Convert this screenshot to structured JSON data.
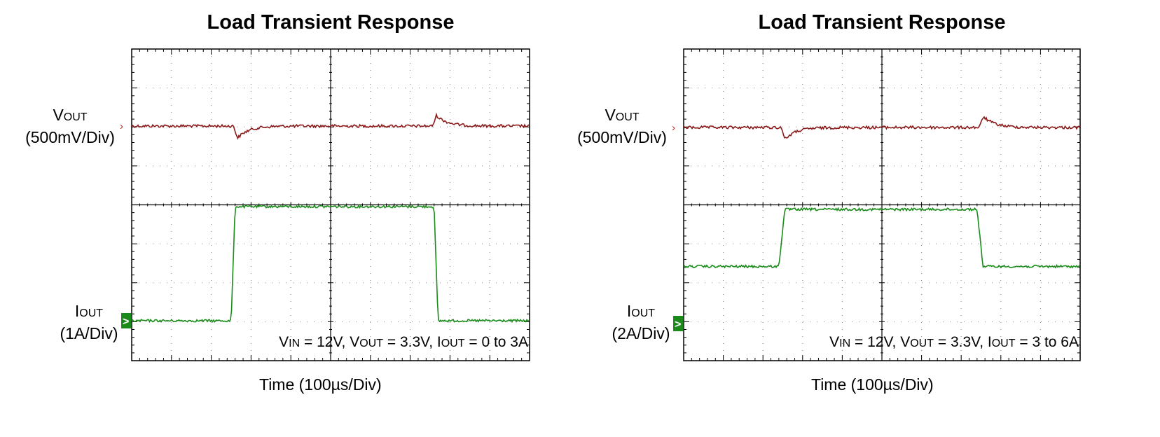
{
  "chart_data": [
    {
      "type": "line",
      "title": "Load Transient Response",
      "xlabel": "Time (100µs/Div)",
      "x_divisions": 10,
      "y_divisions": 8,
      "grid": true,
      "channels": [
        {
          "name_main": "V",
          "name_sub": "OUT",
          "scale": "(500mV/Div)",
          "color": "#8b1a1a"
        },
        {
          "name_main": "I",
          "name_sub": "OUT",
          "scale": "(1A/Div)",
          "color": "#1a8c1a"
        }
      ],
      "conditions": [
        {
          "main": "V",
          "sub": "IN",
          "text": " = 12V, "
        },
        {
          "main": "V",
          "sub": "OUT",
          "text": " = 3.3V, "
        },
        {
          "main": "I",
          "sub": "OUT",
          "text": " = 0 to 3A"
        }
      ],
      "iout_points": [
        [
          0,
          0
        ],
        [
          2.5,
          0
        ],
        [
          2.6,
          3
        ],
        [
          7.6,
          3
        ],
        [
          7.7,
          0
        ],
        [
          10,
          0
        ]
      ],
      "vout_events": [
        {
          "t": 2.6,
          "dv_mv": -155
        },
        {
          "t": 7.6,
          "dv_mv": 135
        }
      ]
    },
    {
      "type": "line",
      "title": "Load Transient Response",
      "xlabel": "Time (100µs/Div)",
      "x_divisions": 10,
      "y_divisions": 8,
      "grid": true,
      "channels": [
        {
          "name_main": "V",
          "name_sub": "OUT",
          "scale": "(500mV/Div)",
          "color": "#8b1a1a"
        },
        {
          "name_main": "I",
          "name_sub": "OUT",
          "scale": "(2A/Div)",
          "color": "#1a8c1a"
        }
      ],
      "conditions": [
        {
          "main": "V",
          "sub": "IN",
          "text": " = 12V, "
        },
        {
          "main": "V",
          "sub": "OUT",
          "text": " = 3.3V, "
        },
        {
          "main": "I",
          "sub": "OUT",
          "text": " = 3 to 6A"
        }
      ],
      "iout_points": [
        [
          0,
          3
        ],
        [
          2.4,
          3
        ],
        [
          2.55,
          6
        ],
        [
          7.4,
          6
        ],
        [
          7.55,
          3
        ],
        [
          10,
          3
        ]
      ],
      "vout_events": [
        {
          "t": 2.5,
          "dv_mv": -150
        },
        {
          "t": 7.5,
          "dv_mv": 140
        }
      ]
    }
  ]
}
